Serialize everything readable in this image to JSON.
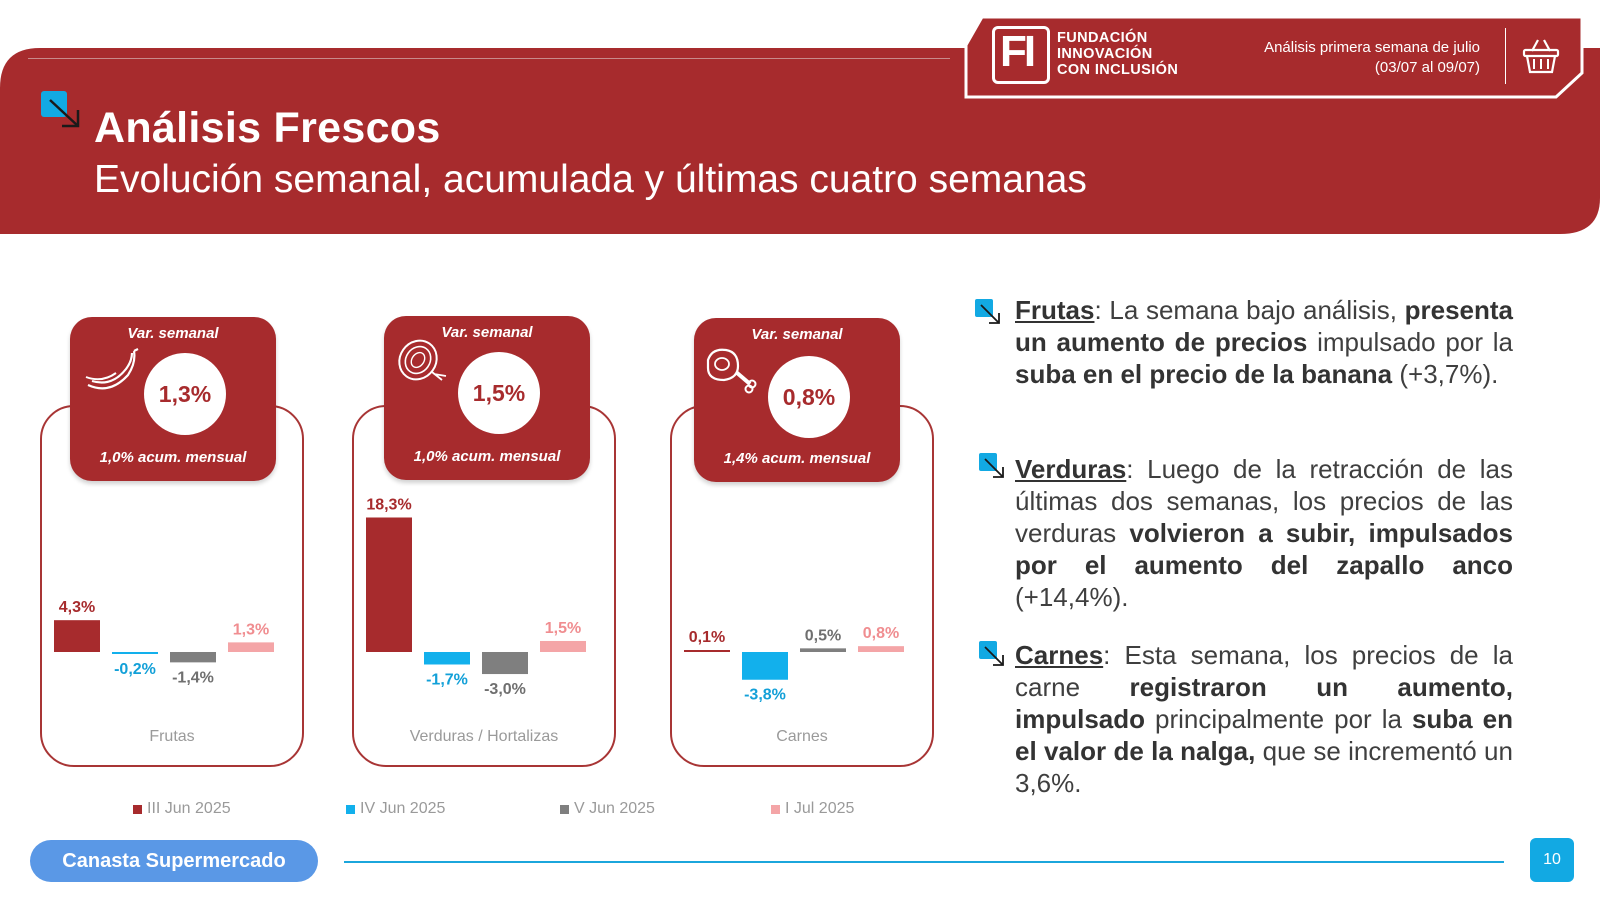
{
  "header": {
    "title": "Análisis Frescos",
    "subtitle": "Evolución semanal, acumulada y últimas cuatro semanas",
    "org_logo_letters": "FI",
    "org_line1": "FUNDACIÓN",
    "org_line2": "INNOVACIÓN",
    "org_line3": "CON INCLUSIÓN",
    "week_line1": "Análisis primera semana de julio",
    "week_line2": "(03/07 al 09/07)",
    "basket_icon": "basket-icon"
  },
  "colors": {
    "brand_red": "#a72b2d",
    "series_1": "#a72b2d",
    "series_2": "#12b0ec",
    "series_3": "#7f7f7f",
    "series_4": "#f4a5a7",
    "accent_blue": "#12a9e3"
  },
  "panels": [
    {
      "name": "Frutas",
      "var_title": "Var. semanal",
      "var_value": "1,3%",
      "acum": "1,0% acum. mensual",
      "icon": "banana-icon"
    },
    {
      "name": "Verduras / Hortalizas",
      "var_title": "Var. semanal",
      "var_value": "1,5%",
      "acum": "1,0% acum. mensual",
      "icon": "onion-icon"
    },
    {
      "name": "Carnes",
      "var_title": "Var. semanal",
      "var_value": "0,8%",
      "acum": "1,4% acum. mensual",
      "icon": "meat-icon"
    }
  ],
  "chart_data": {
    "type": "bar",
    "categories": [
      "Frutas",
      "Verduras / Hortalizas",
      "Carnes"
    ],
    "series": [
      {
        "name": "III Jun 2025",
        "values": [
          4.3,
          18.3,
          0.1
        ],
        "labels": [
          "4,3%",
          "18,3%",
          "0,1%"
        ]
      },
      {
        "name": "IV Jun 2025",
        "values": [
          -0.2,
          -1.7,
          -3.8
        ],
        "labels": [
          "-0,2%",
          "-1,7%",
          "-3,8%"
        ]
      },
      {
        "name": "V Jun 2025",
        "values": [
          -1.4,
          -3.0,
          0.5
        ],
        "labels": [
          "-1,4%",
          "-3,0%",
          "0,5%"
        ]
      },
      {
        "name": "I Jul 2025",
        "values": [
          1.3,
          1.5,
          0.8
        ],
        "labels": [
          "1,3%",
          "1,5%",
          "0,8%"
        ]
      }
    ],
    "xlabel": "",
    "ylabel": "",
    "legend": "bottom"
  },
  "bullets": [
    {
      "head": "Frutas",
      "icon": "bullet-arrow-icon",
      "parts": [
        {
          "t": ": La semana bajo análisis, ",
          "b": false
        },
        {
          "t": "presenta un aumento de precios",
          "b": true
        },
        {
          "t": " impulsado por la ",
          "b": false
        },
        {
          "t": "suba en el precio de la banana",
          "b": true
        },
        {
          "t": " (+3,7%).",
          "b": false
        }
      ]
    },
    {
      "head": "Verduras",
      "icon": "bullet-arrow-icon",
      "parts": [
        {
          "t": ": Luego de la retracción de las últimas dos semanas, los precios de las verduras ",
          "b": false
        },
        {
          "t": "volvieron a subir, impulsados por el aumento del zapallo anco",
          "b": true
        },
        {
          "t": " (+14,4%).",
          "b": false
        }
      ]
    },
    {
      "head": "Carnes",
      "icon": "bullet-arrow-icon",
      "parts": [
        {
          "t": ": Esta semana, los precios de la carne ",
          "b": false
        },
        {
          "t": "registraron un aumento, impulsado",
          "b": true
        },
        {
          "t": " principalmente por la ",
          "b": false
        },
        {
          "t": "suba en el valor de la nalga,",
          "b": true
        },
        {
          "t": " que se incrementó un 3,6%.",
          "b": false
        }
      ]
    }
  ],
  "footer": {
    "section_label": "Canasta Supermercado",
    "page_number": "10"
  }
}
